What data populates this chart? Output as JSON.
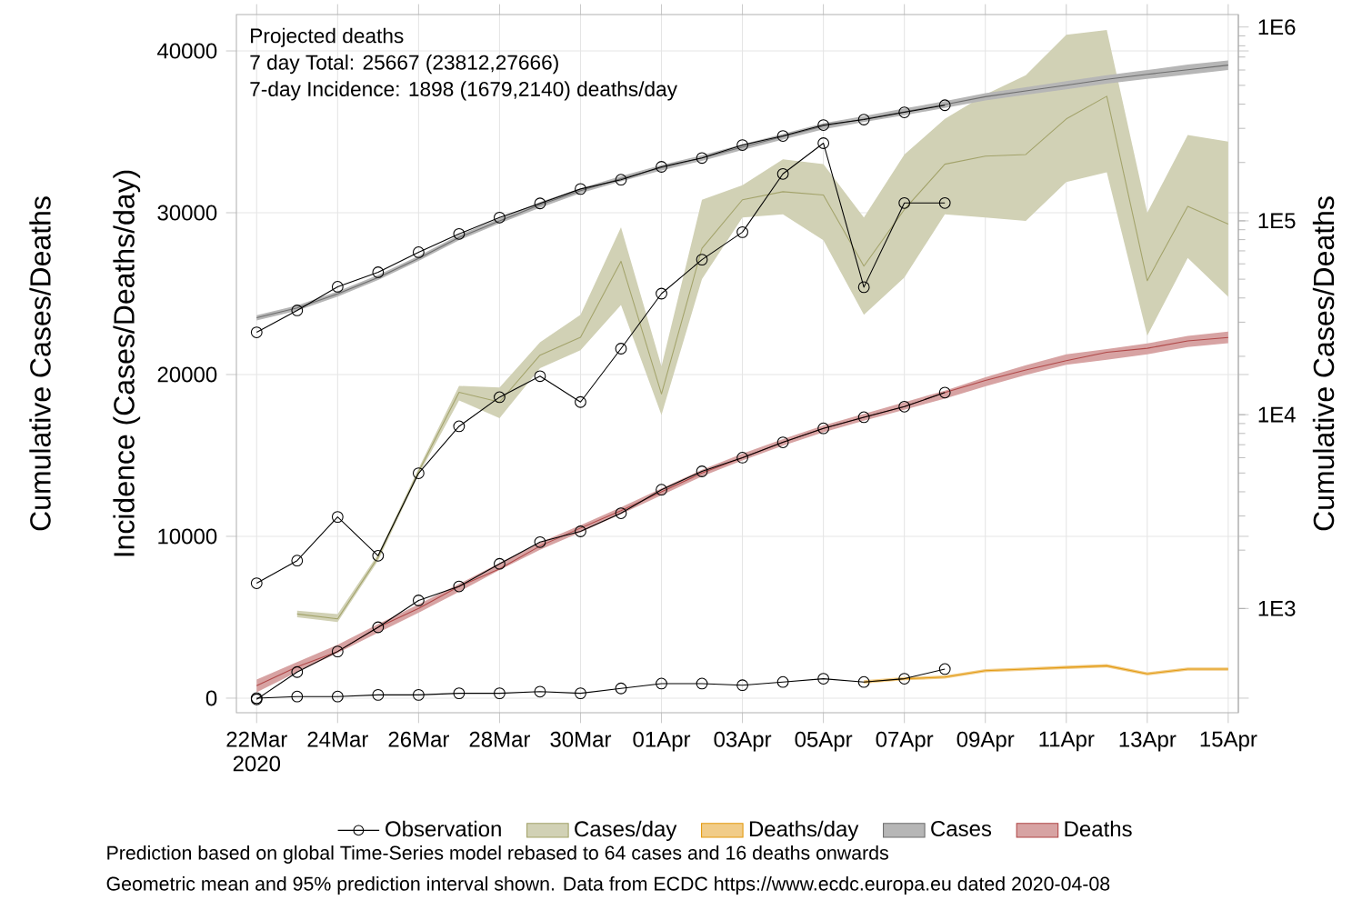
{
  "chart_data": {
    "type": "line",
    "ylabel": "Incidence (Cases/Deaths/day)",
    "y2label": "Cumulative Cases/Deaths",
    "annotations": [
      "Projected deaths",
      "7 day Total:  25667 (23812,27666)",
      "7-day Incidence:  1898 (1679,2140) deaths/day",
      "Prediction based on global Time-Series model rebased to 64 cases and 16 deaths onwards",
      "Geometric mean and 95% prediction interval shown. Data from ECDC https://www.ecdc.europa.eu dated 2020-04-08"
    ],
    "xlim": [
      "2020-03-21T12:00",
      "2020-04-15T06:00"
    ],
    "xticks": [
      {
        "value": "2020-03-22",
        "label": "22Mar 2020"
      },
      {
        "value": "2020-03-24",
        "label": "24Mar"
      },
      {
        "value": "2020-03-26",
        "label": "26Mar"
      },
      {
        "value": "2020-03-28",
        "label": "28Mar"
      },
      {
        "value": "2020-03-30",
        "label": "30Mar"
      },
      {
        "value": "2020-04-01",
        "label": "01Apr"
      },
      {
        "value": "2020-04-03",
        "label": "03Apr"
      },
      {
        "value": "2020-04-05",
        "label": "05Apr"
      },
      {
        "value": "2020-04-07",
        "label": "07Apr"
      },
      {
        "value": "2020-04-09",
        "label": "09Apr"
      },
      {
        "value": "2020-04-11",
        "label": "11Apr"
      },
      {
        "value": "2020-04-13",
        "label": "13Apr"
      },
      {
        "value": "2020-04-15",
        "label": "15Apr"
      }
    ],
    "ylim": [
      -900,
      42250
    ],
    "yticks": [
      0,
      10000,
      20000,
      30000,
      40000
    ],
    "y2lim": [
      290,
      1160000
    ],
    "y2ticks": [
      {
        "value": 1000,
        "label": "1E3"
      },
      {
        "value": 10000,
        "label": "1E4"
      },
      {
        "value": 100000,
        "label": "1E5"
      },
      {
        "value": 1000000,
        "label": "1E6"
      }
    ],
    "grid": true,
    "legend": "bottom",
    "log": "y2",
    "series": [
      {
        "name": "Cases/day",
        "color": "#a3a36b",
        "x": [
          "2020-03-23",
          "2020-03-24",
          "2020-03-25",
          "2020-03-26",
          "2020-03-27",
          "2020-03-28",
          "2020-03-29",
          "2020-03-30",
          "2020-03-31",
          "2020-04-01",
          "2020-04-02",
          "2020-04-03",
          "2020-04-04",
          "2020-04-05",
          "2020-04-06",
          "2020-04-07",
          "2020-04-08",
          "2020-04-09",
          "2020-04-10",
          "2020-04-11",
          "2020-04-12",
          "2020-04-13",
          "2020-04-14",
          "2020-04-15"
        ],
        "values": [
          5200,
          4900,
          8700,
          14000,
          18900,
          18300,
          21200,
          22300,
          27000,
          18800,
          27800,
          30800,
          31300,
          31100,
          26700,
          30200,
          33000,
          33500,
          33600,
          35800,
          37200,
          25800,
          30400,
          29300
        ],
        "lower": [
          5000,
          4700,
          8500,
          13800,
          18400,
          17300,
          20400,
          21500,
          24300,
          17500,
          25900,
          29700,
          29900,
          28300,
          23700,
          26000,
          29900,
          29700,
          29500,
          31900,
          32500,
          22400,
          27200,
          24800
        ],
        "upper": [
          5400,
          5200,
          8900,
          14200,
          19300,
          19200,
          22000,
          23700,
          29100,
          20500,
          30800,
          31700,
          33300,
          33000,
          29700,
          33600,
          35800,
          37300,
          38500,
          41000,
          41300,
          30000,
          34800,
          34400
        ]
      },
      {
        "name": "Deaths/day",
        "color": "#e39a10",
        "x": [
          "2020-04-06",
          "2020-04-07",
          "2020-04-08",
          "2020-04-09",
          "2020-04-10",
          "2020-04-11",
          "2020-04-12",
          "2020-04-13",
          "2020-04-14",
          "2020-04-15"
        ],
        "values": [
          1000,
          1200,
          1300,
          1700,
          1800,
          1900,
          2000,
          1500,
          1800,
          1800
        ],
        "lower": [
          900,
          1100,
          1200,
          1600,
          1700,
          1800,
          1900,
          1400,
          1700,
          1700
        ],
        "upper": [
          1100,
          1300,
          1400,
          1800,
          1900,
          2000,
          2100,
          1600,
          1900,
          1900
        ]
      },
      {
        "name": "Observation",
        "color": "#000000",
        "marker": "circle",
        "x": [
          "2020-03-22",
          "2020-03-23",
          "2020-03-24",
          "2020-03-25",
          "2020-03-26",
          "2020-03-27",
          "2020-03-28",
          "2020-03-29",
          "2020-03-30",
          "2020-03-31",
          "2020-04-01",
          "2020-04-02",
          "2020-04-03",
          "2020-04-04",
          "2020-04-05",
          "2020-04-06",
          "2020-04-07",
          "2020-04-08"
        ],
        "values": [
          7100,
          8500,
          11200,
          8800,
          13900,
          16800,
          18600,
          19900,
          18300,
          21600,
          25000,
          27100,
          28800,
          32400,
          34300,
          25400,
          30600,
          30600
        ]
      },
      {
        "color": "#000000",
        "marker": "circle",
        "x": [
          "2020-03-22",
          "2020-03-23",
          "2020-03-24",
          "2020-03-25",
          "2020-03-26",
          "2020-03-27",
          "2020-03-28",
          "2020-03-29",
          "2020-03-30",
          "2020-03-31",
          "2020-04-01",
          "2020-04-02",
          "2020-04-03",
          "2020-04-04",
          "2020-04-05",
          "2020-04-06",
          "2020-04-07",
          "2020-04-08"
        ],
        "values": [
          0,
          100,
          100,
          200,
          200,
          300,
          300,
          400,
          300,
          600,
          900,
          900,
          800,
          1000,
          1200,
          1000,
          1200,
          1800
        ]
      },
      {
        "name": "Cases",
        "color": "#6e6e6e",
        "axis": "y2",
        "x": [
          "2020-03-22",
          "2020-03-23",
          "2020-03-24",
          "2020-03-25",
          "2020-03-26",
          "2020-03-27",
          "2020-03-28",
          "2020-03-29",
          "2020-03-30",
          "2020-03-31",
          "2020-04-01",
          "2020-04-02",
          "2020-04-03",
          "2020-04-04",
          "2020-04-05",
          "2020-04-06",
          "2020-04-07",
          "2020-04-08",
          "2020-04-09",
          "2020-04-10",
          "2020-04-11",
          "2020-04-12",
          "2020-04-13",
          "2020-04-14",
          "2020-04-15"
        ],
        "values": [
          31600,
          35500,
          42000,
          51000,
          64000,
          82000,
          100000,
          121000,
          143000,
          165000,
          188000,
          211000,
          240000,
          272000,
          308000,
          335000,
          365000,
          398000,
          437000,
          468000,
          501000,
          537000,
          570000,
          602000,
          636000
        ],
        "lower": [
          30600,
          34400,
          40700,
          49500,
          62100,
          79500,
          97000,
          117000,
          139000,
          160000,
          182000,
          204000,
          232000,
          263000,
          297000,
          323000,
          351000,
          382000,
          418000,
          447000,
          477000,
          510000,
          540000,
          569000,
          600000
        ],
        "upper": [
          32600,
          36600,
          43300,
          52500,
          65900,
          84500,
          103000,
          125000,
          147000,
          170000,
          194000,
          218000,
          248000,
          281000,
          319000,
          347000,
          380000,
          414000,
          456000,
          489000,
          525000,
          564000,
          600000,
          640000,
          672000
        ]
      },
      {
        "name": "Deaths",
        "color": "#b04848",
        "axis": "y2",
        "x": [
          "2020-03-22",
          "2020-03-23",
          "2020-03-24",
          "2020-03-25",
          "2020-03-26",
          "2020-03-27",
          "2020-03-28",
          "2020-03-29",
          "2020-03-30",
          "2020-03-31",
          "2020-04-01",
          "2020-04-02",
          "2020-04-03",
          "2020-04-04",
          "2020-04-05",
          "2020-04-06",
          "2020-04-07",
          "2020-04-08",
          "2020-04-09",
          "2020-04-10",
          "2020-04-11",
          "2020-04-12",
          "2020-04-13",
          "2020-04-14",
          "2020-04-15"
        ],
        "values": [
          400,
          500,
          600,
          800,
          1000,
          1300,
          1600,
          2100,
          2600,
          3200,
          4000,
          5000,
          6000,
          7200,
          8500,
          9700,
          11000,
          13000,
          15000,
          17000,
          19000,
          21000,
          22000,
          24000,
          25000
        ],
        "lower": [
          370,
          470,
          590,
          750,
          950,
          1220,
          1580,
          2010,
          2470,
          3070,
          3840,
          4800,
          5810,
          6910,
          8110,
          9310,
          10600,
          12100,
          14000,
          16000,
          18100,
          19200,
          20500,
          22300,
          23400
        ],
        "upper": [
          430,
          530,
          650,
          830,
          1050,
          1340,
          1720,
          2190,
          2690,
          3330,
          4160,
          5200,
          6290,
          7490,
          8790,
          10100,
          11600,
          13300,
          15600,
          18000,
          20500,
          21800,
          23300,
          25500,
          26800
        ]
      },
      {
        "color": "#000000",
        "marker": "circle",
        "axis": "y2",
        "x": [
          "2020-03-22",
          "2020-03-23",
          "2020-03-24",
          "2020-03-25",
          "2020-03-26",
          "2020-03-27",
          "2020-03-28",
          "2020-03-29",
          "2020-03-30",
          "2020-03-31",
          "2020-04-01",
          "2020-04-02",
          "2020-04-03",
          "2020-04-04",
          "2020-04-05",
          "2020-04-06",
          "2020-04-07",
          "2020-04-08"
        ],
        "values": [
          26600,
          34500,
          45700,
          54300,
          68900,
          85600,
          104000,
          123000,
          146000,
          163000,
          190000,
          211000,
          246000,
          274000,
          312000,
          333000,
          363000,
          395000
        ]
      },
      {
        "color": "#000000",
        "marker": "circle",
        "axis": "y2",
        "x": [
          "2020-03-22",
          "2020-03-23",
          "2020-03-24",
          "2020-03-25",
          "2020-03-26",
          "2020-03-27",
          "2020-03-28",
          "2020-03-29",
          "2020-03-30",
          "2020-03-31",
          "2020-04-01",
          "2020-04-02",
          "2020-04-03",
          "2020-04-04",
          "2020-04-05",
          "2020-04-06",
          "2020-04-07",
          "2020-04-08"
        ],
        "values": [
          340,
          470,
          600,
          800,
          1100,
          1300,
          1700,
          2200,
          2500,
          3100,
          4100,
          5100,
          6000,
          7200,
          8500,
          9700,
          11000,
          13000
        ]
      }
    ]
  }
}
